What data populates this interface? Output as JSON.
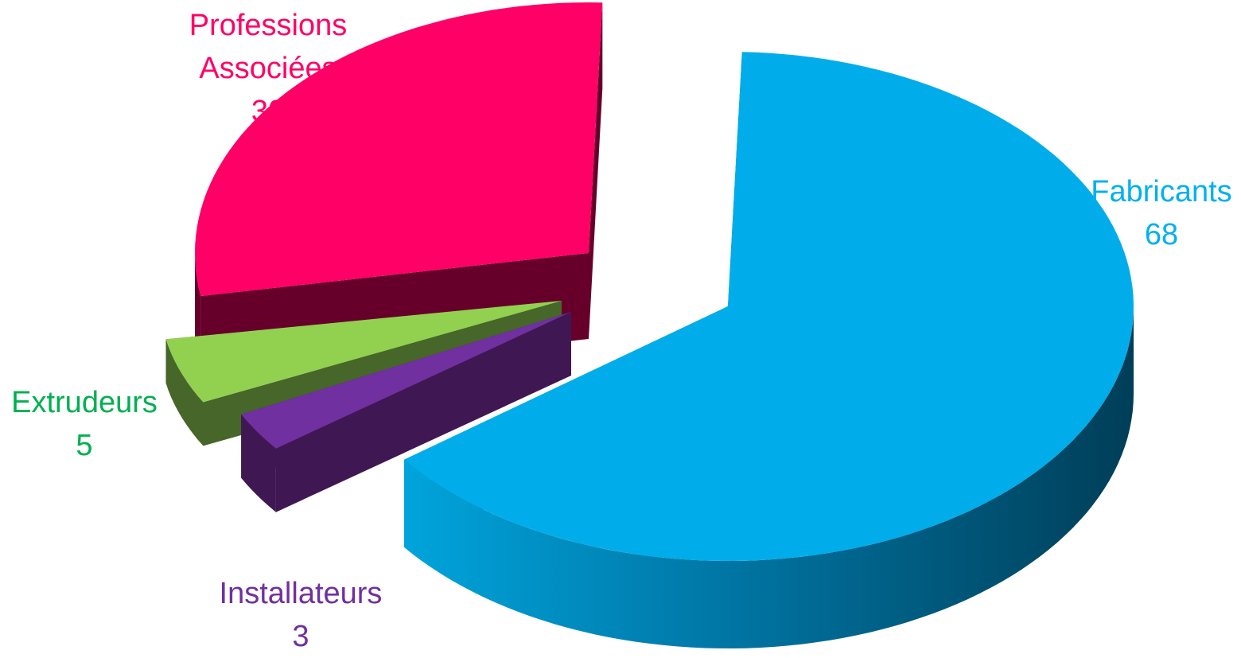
{
  "chart_data": {
    "type": "pie",
    "style": "3d-exploded",
    "title": "",
    "legend": "none",
    "slices": [
      {
        "label": "Fabricants",
        "value": 68,
        "color": "#00adea",
        "side_color": "#0077a6"
      },
      {
        "label": "Installateurs",
        "value": 3,
        "color": "#7030a0",
        "side_color": "#3f1753"
      },
      {
        "label": "Extrudeurs",
        "value": 5,
        "color": "#92d050",
        "side_color": "#46662a"
      },
      {
        "label": "Professions\nAssociées",
        "value": 30,
        "color": "#ff0066",
        "side_color": "#66002a"
      }
    ],
    "label_colors": {
      "Fabricants": "#00b0f0",
      "Installateurs": "#7030a0",
      "Extrudeurs": "#00b050",
      "Professions\nAssociées": "#ff0066"
    }
  }
}
